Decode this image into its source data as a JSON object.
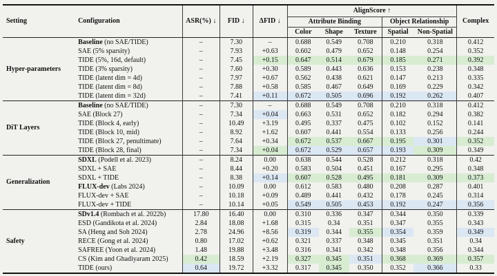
{
  "table": {
    "headers": {
      "setting": "Setting",
      "configuration": "Configuration",
      "asr": "ASR(%) ↓",
      "fid": "FID ↓",
      "dfid": "ΔFID ↓",
      "alignscore": "AlignScore ↑",
      "attribute_binding": "Attribute Binding",
      "object_relationship": "Object Relationship",
      "color": "Color",
      "shape": "Shape",
      "texture": "Texture",
      "spatial": "Spatial",
      "non_spatial": "Non-Spatial",
      "complex": "Complex"
    },
    "column_keys": [
      "asr",
      "fid",
      "dfid",
      "color",
      "shape",
      "texture",
      "spatial",
      "non_spatial",
      "complex"
    ],
    "highlight_colors": {
      "best": "#d8ecd2",
      "second": "#dbe7f3"
    },
    "groups": [
      {
        "setting": "Hyper-parameters",
        "rows": [
          {
            "config_bold": "Baseline",
            "config_rest": " (no SAE/TIDE)",
            "values": [
              "–",
              "7.30",
              "–",
              "0.688",
              "0.549",
              "0.708",
              "0.210",
              "0.318",
              "0.412"
            ],
            "hl": [
              "",
              "",
              "",
              "",
              "",
              "",
              "",
              "",
              ""
            ]
          },
          {
            "config_bold": "",
            "config_rest": "SAE (5% sparsity)",
            "values": [
              "–",
              "7.93",
              "+0.63",
              "0.602",
              "0.479",
              "0.652",
              "0.148",
              "0.254",
              "0.352"
            ],
            "hl": [
              "",
              "",
              "",
              "",
              "",
              "",
              "",
              "",
              ""
            ]
          },
          {
            "config_bold": "",
            "config_rest": "TIDE (5%, 16d, default)",
            "values": [
              "–",
              "7.45",
              "+0.15",
              "0.647",
              "0.514",
              "0.679",
              "0.185",
              "0.271",
              "0.392"
            ],
            "hl": [
              "",
              "",
              "g",
              "g",
              "g",
              "g",
              "g",
              "g",
              "g"
            ]
          },
          {
            "config_bold": "",
            "config_rest": "TIDE (3% sparsity)",
            "values": [
              "–",
              "7.60",
              "+0.30",
              "0.589",
              "0.443",
              "0.636",
              "0.153",
              "0.238",
              "0.348"
            ],
            "hl": [
              "",
              "",
              "",
              "",
              "",
              "",
              "",
              "",
              ""
            ]
          },
          {
            "config_bold": "",
            "config_rest": "TIDE (latent dim = 4d)",
            "values": [
              "–",
              "7.97",
              "+0.67",
              "0.562",
              "0.438",
              "0.621",
              "0.147",
              "0.213",
              "0.335"
            ],
            "hl": [
              "",
              "",
              "",
              "",
              "",
              "",
              "",
              "",
              ""
            ]
          },
          {
            "config_bold": "",
            "config_rest": "TIDE (latent dim = 8d)",
            "values": [
              "–",
              "7.88",
              "+0.58",
              "0.585",
              "0.467",
              "0.649",
              "0.169",
              "0.229",
              "0.342"
            ],
            "hl": [
              "",
              "",
              "",
              "",
              "",
              "",
              "",
              "",
              ""
            ]
          },
          {
            "config_bold": "",
            "config_rest": "TIDE (latent dim = 32d)",
            "values": [
              "–",
              "7.41",
              "+0.11",
              "0.672",
              "0.505",
              "0.696",
              "0.192",
              "0.262",
              "0.407"
            ],
            "hl": [
              "",
              "",
              "b",
              "b",
              "b",
              "b",
              "b",
              "b",
              ""
            ]
          }
        ]
      },
      {
        "setting": "DiT Layers",
        "rows": [
          {
            "config_bold": "Baseline",
            "config_rest": " (no SAE/TIDE)",
            "values": [
              "–",
              "7.30",
              "–",
              "0.688",
              "0.549",
              "0.708",
              "0.210",
              "0.318",
              "0.412"
            ],
            "hl": [
              "",
              "",
              "",
              "",
              "",
              "",
              "",
              "",
              ""
            ]
          },
          {
            "config_bold": "",
            "config_rest": "SAE (Block 27)",
            "values": [
              "–",
              "7.34",
              "+0.04",
              "0.663",
              "0.531",
              "0.652",
              "0.182",
              "0.294",
              "0.382"
            ],
            "hl": [
              "",
              "",
              "b",
              "",
              "",
              "",
              "",
              "",
              ""
            ]
          },
          {
            "config_bold": "",
            "config_rest": "TIDE (Block 4, early)",
            "values": [
              "–",
              "10.49",
              "+3.19",
              "0.495",
              "0.337",
              "0.475",
              "0.102",
              "0.152",
              "0.141"
            ],
            "hl": [
              "",
              "",
              "",
              "",
              "",
              "",
              "",
              "",
              ""
            ]
          },
          {
            "config_bold": "",
            "config_rest": "TIDE (Block 10, mid)",
            "values": [
              "–",
              "8.92",
              "+1.62",
              "0.607",
              "0.441",
              "0.554",
              "0.133",
              "0.256",
              "0.244"
            ],
            "hl": [
              "",
              "",
              "",
              "",
              "",
              "",
              "",
              "",
              ""
            ]
          },
          {
            "config_bold": "",
            "config_rest": "TIDE (Block 27, penultimate)",
            "values": [
              "–",
              "7.64",
              "+0.34",
              "0.672",
              "0.537",
              "0.667",
              "0.195",
              "0.301",
              "0.352"
            ],
            "hl": [
              "",
              "",
              "",
              "g",
              "g",
              "g",
              "g",
              "b",
              "g"
            ]
          },
          {
            "config_bold": "",
            "config_rest": "TIDE (Block 28, final)",
            "values": [
              "–",
              "7.34",
              "+0.04",
              "0.672",
              "0.529",
              "0.657",
              "0.193",
              "0.309",
              "0.349"
            ],
            "hl": [
              "",
              "",
              "g",
              "b",
              "b",
              "b",
              "b",
              "g",
              ""
            ]
          }
        ]
      },
      {
        "setting": "Generalization",
        "rows": [
          {
            "config_bold": "SDXL",
            "config_rest": " (Podell et al. 2023)",
            "values": [
              "–",
              "8.24",
              "0.00",
              "0.638",
              "0.544",
              "0.528",
              "0.212",
              "0.318",
              "0.42"
            ],
            "hl": [
              "",
              "",
              "",
              "",
              "",
              "",
              "",
              "",
              ""
            ]
          },
          {
            "config_bold": "",
            "config_rest": "SDXL + SAE",
            "values": [
              "–",
              "8.44",
              "+0.20",
              "0.583",
              "0.504",
              "0.451",
              "0.167",
              "0.295",
              "0.348"
            ],
            "hl": [
              "",
              "",
              "",
              "",
              "",
              "",
              "",
              "",
              ""
            ]
          },
          {
            "config_bold": "",
            "config_rest": "SDXL + TIDE",
            "values": [
              "–",
              "8.38",
              "+0.14",
              "0.607",
              "0.528",
              "0.495",
              "0.181",
              "0.309",
              "0.373"
            ],
            "hl": [
              "",
              "",
              "b",
              "g",
              "g",
              "g",
              "g",
              "g",
              "g"
            ]
          },
          {
            "config_bold": "FLUX-dev",
            "config_rest": " (Labs 2024)",
            "values": [
              "–",
              "10.09",
              "0.00",
              "0.612",
              "0.583",
              "0.480",
              "0.208",
              "0.287",
              "0.401"
            ],
            "hl": [
              "",
              "",
              "",
              "",
              "",
              "",
              "",
              "",
              ""
            ]
          },
          {
            "config_bold": "",
            "config_rest": "FLUX-dev + SAE",
            "values": [
              "–",
              "10.18",
              "+0.09",
              "0.489",
              "0.441",
              "0.432",
              "0.178",
              "0.245",
              "0.314"
            ],
            "hl": [
              "",
              "",
              "",
              "",
              "",
              "",
              "",
              "",
              ""
            ]
          },
          {
            "config_bold": "",
            "config_rest": "FLUX-dev + TIDE",
            "values": [
              "–",
              "10.14",
              "+0.05",
              "0.549",
              "0.505",
              "0.453",
              "0.192",
              "0.247",
              "0.356"
            ],
            "hl": [
              "",
              "",
              "",
              "b",
              "b",
              "b",
              "b",
              "b",
              "b"
            ]
          }
        ]
      },
      {
        "setting": "Safety",
        "rows": [
          {
            "config_bold": "SDv1.4",
            "config_rest": " (Rombach et al. 2022b)",
            "values": [
              "17.80",
              "16.40",
              "0.00",
              "0.310",
              "0.336",
              "0.347",
              "0.344",
              "0.350",
              "0.339"
            ],
            "hl": [
              "",
              "",
              "",
              "",
              "",
              "",
              "",
              "",
              ""
            ]
          },
          {
            "config_bold": "",
            "config_rest": "ESD (Gandikota et al. 2024)",
            "values": [
              "2.84",
              "18.08",
              "+1.68",
              "0.315",
              "0.34",
              "0.351",
              "0.347",
              "0.355",
              "0.343"
            ],
            "hl": [
              "",
              "",
              "",
              "",
              "",
              "",
              "",
              "",
              ""
            ]
          },
          {
            "config_bold": "",
            "config_rest": "SA (Heng and Soh 2024)",
            "values": [
              "2.78",
              "24.96",
              "+8.56",
              "0.319",
              "0.344",
              "0.355",
              "0.354",
              "0.359",
              "0.349"
            ],
            "hl": [
              "",
              "",
              "",
              "b",
              "",
              "g",
              "b",
              "",
              "b"
            ]
          },
          {
            "config_bold": "",
            "config_rest": "RECE (Gong et al. 2024)",
            "values": [
              "0.80",
              "17.02",
              "+0.62",
              "0.321",
              "0.337",
              "0.348",
              "0.345",
              "0.351",
              "0.34"
            ],
            "hl": [
              "",
              "",
              "",
              "",
              "",
              "",
              "",
              "",
              ""
            ]
          },
          {
            "config_bold": "",
            "config_rest": "SAFREE (Yoon et al. 2024)",
            "values": [
              "1.48",
              "19.88",
              "+3.48",
              "0.316",
              "0.341",
              "0.342",
              "0.348",
              "0.356",
              "0.344"
            ],
            "hl": [
              "",
              "",
              "",
              "",
              "",
              "",
              "",
              "",
              ""
            ]
          },
          {
            "config_bold": "",
            "config_rest": "CS (Kim and Ghadiyaram 2025)",
            "values": [
              "0.42",
              "18.59",
              "+2.19",
              "0.327",
              "0.345",
              "0.351",
              "0.368",
              "0.369",
              "0.357"
            ],
            "hl": [
              "g",
              "",
              "",
              "g",
              "g",
              "b",
              "g",
              "g",
              "g"
            ]
          },
          {
            "config_bold": "",
            "config_rest": "TIDE (ours)",
            "values": [
              "0.64",
              "19.72",
              "+3.32",
              "0.317",
              "0.345",
              "0.350",
              "0.352",
              "0.366",
              "0.33"
            ],
            "hl": [
              "b",
              "",
              "",
              "",
              "g",
              "",
              "",
              "b",
              ""
            ]
          }
        ]
      }
    ]
  }
}
